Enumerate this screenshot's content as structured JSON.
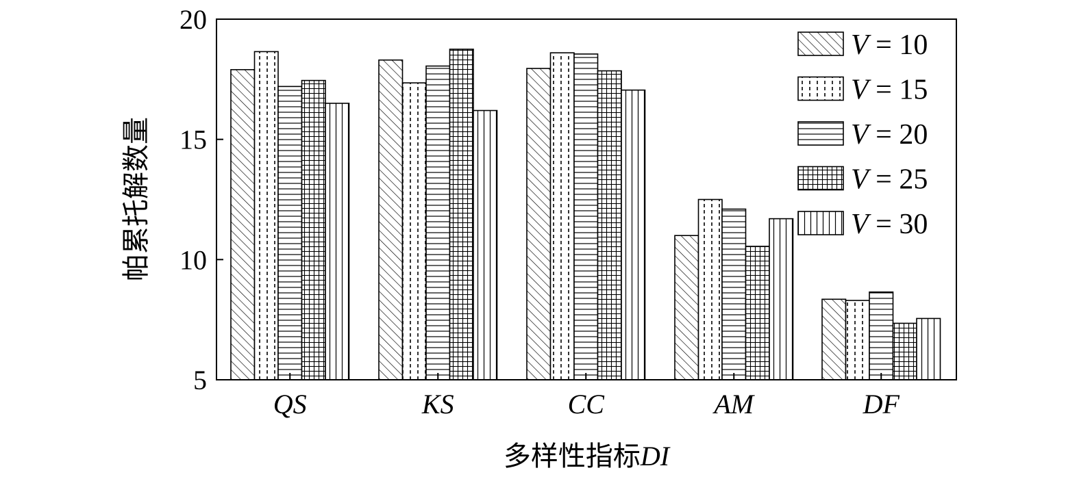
{
  "chart_data": {
    "type": "bar",
    "categories": [
      "QS",
      "KS",
      "CC",
      "AM",
      "DF"
    ],
    "series": [
      {
        "name": "V = 10",
        "values": [
          17.9,
          18.3,
          17.95,
          11.0,
          8.35
        ]
      },
      {
        "name": "V = 15",
        "values": [
          18.65,
          17.35,
          18.6,
          12.5,
          8.3
        ]
      },
      {
        "name": "V = 20",
        "values": [
          17.2,
          18.05,
          18.55,
          12.1,
          8.65
        ]
      },
      {
        "name": "V = 25",
        "values": [
          17.45,
          18.75,
          17.85,
          10.55,
          7.35
        ]
      },
      {
        "name": "V = 30",
        "values": [
          16.5,
          16.2,
          17.05,
          11.7,
          7.55
        ]
      }
    ],
    "patterns": [
      "diagonal-hatch",
      "dotted-vertical",
      "horizontal-lines",
      "grid",
      "vertical-lines"
    ],
    "xlabel_prefix": "多样性指标",
    "xlabel_suffix": "DI",
    "ylabel": "帕累托解数量",
    "ylim": [
      5,
      20
    ],
    "yticks": [
      5,
      10,
      15,
      20
    ],
    "legend_position": "top-right",
    "grid": false
  }
}
